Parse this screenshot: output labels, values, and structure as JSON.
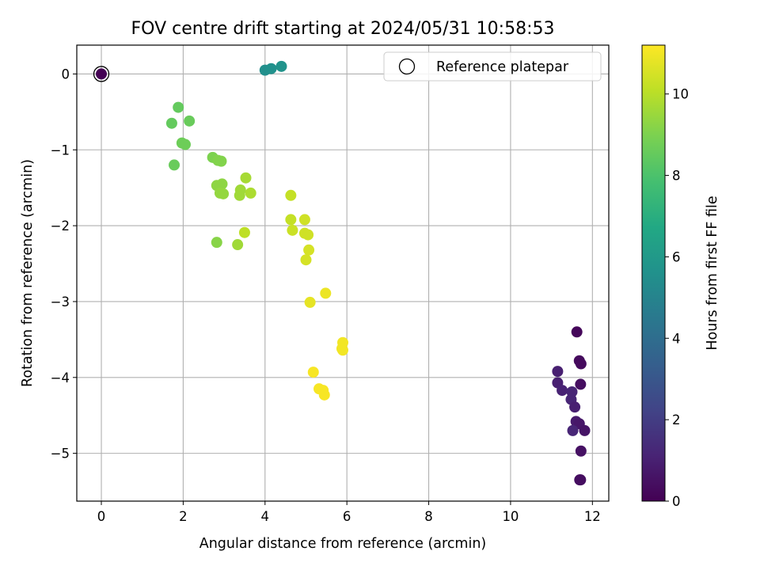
{
  "chart_data": {
    "type": "scatter",
    "title": "FOV centre drift starting at 2024/05/31 10:58:53",
    "xlabel": "Angular distance from reference (arcmin)",
    "ylabel": "Rotation from reference (arcmin)",
    "xlim": [
      -0.6,
      12.4
    ],
    "ylim": [
      -5.63,
      0.38
    ],
    "x_ticks": [
      0,
      2,
      4,
      6,
      8,
      10,
      12
    ],
    "y_ticks": [
      0,
      -1,
      -2,
      -3,
      -4,
      -5
    ],
    "x_tick_labels": [
      "0",
      "2",
      "4",
      "6",
      "8",
      "10",
      "12"
    ],
    "y_tick_labels": [
      "0",
      "−1",
      "−2",
      "−3",
      "−4",
      "−5"
    ],
    "grid": true,
    "legend": {
      "position": "top-right",
      "entries": [
        "Reference platepar"
      ]
    },
    "colorbar": {
      "label": "Hours from first FF file",
      "range": [
        0,
        11.2
      ],
      "ticks": [
        0,
        2,
        4,
        6,
        8,
        10
      ],
      "tick_labels": [
        "0",
        "2",
        "4",
        "6",
        "8",
        "10"
      ],
      "colormap": "viridis"
    },
    "reference_point": {
      "x": 0,
      "y": 0,
      "hours": 0
    },
    "points": [
      {
        "x": 11.62,
        "y": -3.4,
        "h": 0.2
      },
      {
        "x": 11.68,
        "y": -3.78,
        "h": 0.3
      },
      {
        "x": 11.72,
        "y": -3.82,
        "h": 0.3
      },
      {
        "x": 11.71,
        "y": -4.09,
        "h": 0.4
      },
      {
        "x": 11.15,
        "y": -3.92,
        "h": 1.0
      },
      {
        "x": 11.15,
        "y": -4.07,
        "h": 1.0
      },
      {
        "x": 11.26,
        "y": -4.17,
        "h": 1.1
      },
      {
        "x": 11.5,
        "y": -4.19,
        "h": 1.2
      },
      {
        "x": 11.48,
        "y": -4.29,
        "h": 1.2
      },
      {
        "x": 11.57,
        "y": -4.39,
        "h": 1.0
      },
      {
        "x": 11.6,
        "y": -4.58,
        "h": 0.8
      },
      {
        "x": 11.68,
        "y": -4.61,
        "h": 0.7
      },
      {
        "x": 11.52,
        "y": -4.7,
        "h": 1.2
      },
      {
        "x": 11.81,
        "y": -4.7,
        "h": 0.6
      },
      {
        "x": 11.72,
        "y": -4.97,
        "h": 0.5
      },
      {
        "x": 11.71,
        "y": -5.35,
        "h": 0.4
      },
      {
        "x": 11.69,
        "y": -5.35,
        "h": 0.4
      },
      {
        "x": 4.0,
        "y": 0.05,
        "h": 5.5
      },
      {
        "x": 4.15,
        "y": 0.07,
        "h": 5.6
      },
      {
        "x": 4.4,
        "y": 0.1,
        "h": 5.7
      },
      {
        "x": 1.88,
        "y": -0.44,
        "h": 8.5
      },
      {
        "x": 1.72,
        "y": -0.65,
        "h": 8.5
      },
      {
        "x": 2.15,
        "y": -0.62,
        "h": 8.6
      },
      {
        "x": 1.97,
        "y": -0.91,
        "h": 8.7
      },
      {
        "x": 2.05,
        "y": -0.93,
        "h": 8.7
      },
      {
        "x": 1.78,
        "y": -1.2,
        "h": 8.6
      },
      {
        "x": 2.72,
        "y": -1.1,
        "h": 9.0
      },
      {
        "x": 2.85,
        "y": -1.14,
        "h": 9.1
      },
      {
        "x": 2.93,
        "y": -1.15,
        "h": 9.1
      },
      {
        "x": 2.82,
        "y": -1.47,
        "h": 9.3
      },
      {
        "x": 2.95,
        "y": -1.45,
        "h": 9.3
      },
      {
        "x": 2.9,
        "y": -1.57,
        "h": 9.4
      },
      {
        "x": 2.98,
        "y": -1.58,
        "h": 9.4
      },
      {
        "x": 2.82,
        "y": -2.22,
        "h": 9.2
      },
      {
        "x": 3.4,
        "y": -1.53,
        "h": 9.6
      },
      {
        "x": 3.38,
        "y": -1.6,
        "h": 9.6
      },
      {
        "x": 3.53,
        "y": -1.37,
        "h": 9.7
      },
      {
        "x": 3.65,
        "y": -1.57,
        "h": 9.8
      },
      {
        "x": 3.33,
        "y": -2.25,
        "h": 9.6
      },
      {
        "x": 3.5,
        "y": -2.09,
        "h": 10.1
      },
      {
        "x": 4.63,
        "y": -1.6,
        "h": 10.2
      },
      {
        "x": 4.63,
        "y": -1.92,
        "h": 10.2
      },
      {
        "x": 4.67,
        "y": -2.06,
        "h": 10.3
      },
      {
        "x": 4.97,
        "y": -1.92,
        "h": 10.4
      },
      {
        "x": 4.97,
        "y": -2.1,
        "h": 10.4
      },
      {
        "x": 5.05,
        "y": -2.12,
        "h": 10.4
      },
      {
        "x": 5.07,
        "y": -2.32,
        "h": 10.5
      },
      {
        "x": 5.0,
        "y": -2.45,
        "h": 10.5
      },
      {
        "x": 5.48,
        "y": -2.89,
        "h": 10.9
      },
      {
        "x": 5.1,
        "y": -3.01,
        "h": 10.8
      },
      {
        "x": 5.9,
        "y": -3.54,
        "h": 11.0
      },
      {
        "x": 5.9,
        "y": -3.64,
        "h": 11.0
      },
      {
        "x": 5.88,
        "y": -3.62,
        "h": 11.0
      },
      {
        "x": 5.18,
        "y": -3.93,
        "h": 11.1
      },
      {
        "x": 5.32,
        "y": -4.15,
        "h": 11.1
      },
      {
        "x": 5.42,
        "y": -4.17,
        "h": 11.1
      },
      {
        "x": 5.45,
        "y": -4.23,
        "h": 11.1
      }
    ]
  }
}
